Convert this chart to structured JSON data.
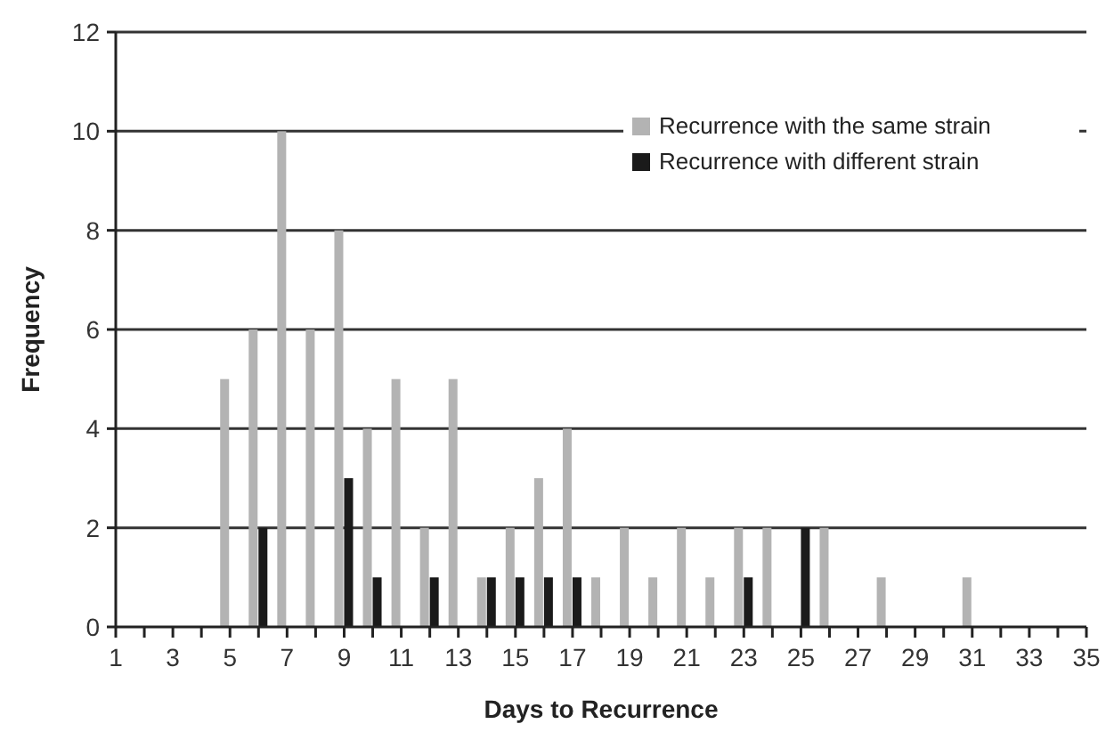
{
  "chart_data": {
    "type": "bar",
    "xlabel": "Days to Recurrence",
    "ylabel": "Frequency",
    "x": [
      1,
      2,
      3,
      4,
      5,
      6,
      7,
      8,
      9,
      10,
      11,
      12,
      13,
      14,
      15,
      16,
      17,
      18,
      19,
      20,
      21,
      22,
      23,
      24,
      25,
      26,
      27,
      28,
      29,
      30,
      31,
      32,
      33,
      34,
      35
    ],
    "series": [
      {
        "name": "Recurrence with the same strain",
        "color": "#b3b3b3",
        "values": [
          0,
          0,
          0,
          0,
          5,
          6,
          10,
          6,
          8,
          4,
          5,
          2,
          5,
          1,
          2,
          3,
          4,
          1,
          2,
          1,
          2,
          1,
          2,
          2,
          0,
          2,
          0,
          1,
          0,
          0,
          1,
          0,
          0,
          0,
          0
        ]
      },
      {
        "name": "Recurrence with different strain",
        "color": "#1a1a1a",
        "values": [
          0,
          0,
          0,
          0,
          0,
          2,
          0,
          0,
          3,
          1,
          0,
          1,
          0,
          1,
          1,
          1,
          1,
          0,
          0,
          0,
          0,
          0,
          1,
          0,
          2,
          0,
          0,
          0,
          0,
          0,
          0,
          0,
          0,
          0,
          0
        ]
      }
    ],
    "xlim": [
      1,
      35
    ],
    "xticks": [
      1,
      {
        "value": 2,
        "label": null
      },
      3,
      {
        "value": 4,
        "label": null
      },
      5,
      {
        "value": 6,
        "label": null
      },
      7,
      {
        "value": 8,
        "label": null
      },
      9,
      {
        "value": 10,
        "label": null
      },
      11,
      {
        "value": 12,
        "label": null
      },
      13,
      {
        "value": 14,
        "label": null
      },
      15,
      {
        "value": 16,
        "label": null
      },
      17,
      {
        "value": 18,
        "label": null
      },
      19,
      {
        "value": 20,
        "label": null
      },
      21,
      {
        "value": 22,
        "label": null
      },
      23,
      {
        "value": 24,
        "label": null
      },
      25,
      {
        "value": 26,
        "label": null
      },
      27,
      {
        "value": 28,
        "label": null
      },
      29,
      {
        "value": 30,
        "label": null
      },
      31,
      {
        "value": 32,
        "label": null
      },
      33,
      {
        "value": 34,
        "label": null
      },
      35
    ],
    "ylim": [
      0,
      12
    ],
    "yticks": [
      0,
      2,
      4,
      6,
      8,
      10,
      12
    ],
    "grid": "y",
    "legend": "top right"
  }
}
